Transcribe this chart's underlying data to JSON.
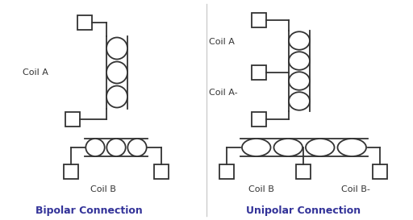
{
  "bg_color": "#ffffff",
  "line_color": "#333333",
  "text_color": "#333333",
  "title_bipolar": "Bipolar Connection",
  "title_unipolar": "Unipolar Connection",
  "coil_a_label": "Coil A",
  "coil_a_minus_label": "Coil A-",
  "coil_b_label_bi": "Coil B",
  "coil_b_label_uni": "Coil B",
  "coil_b_minus_label": "Coil B-",
  "figsize": [
    5.12,
    2.73
  ],
  "dpi": 100
}
